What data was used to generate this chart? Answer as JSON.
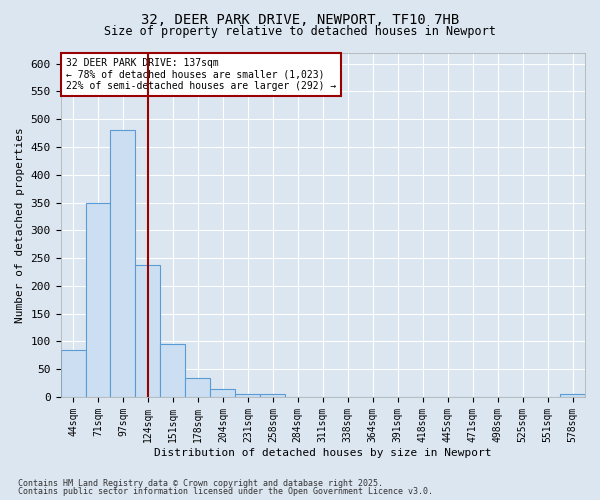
{
  "title1": "32, DEER PARK DRIVE, NEWPORT, TF10 7HB",
  "title2": "Size of property relative to detached houses in Newport",
  "xlabel": "Distribution of detached houses by size in Newport",
  "ylabel": "Number of detached properties",
  "categories": [
    "44sqm",
    "71sqm",
    "97sqm",
    "124sqm",
    "151sqm",
    "178sqm",
    "204sqm",
    "231sqm",
    "258sqm",
    "284sqm",
    "311sqm",
    "338sqm",
    "364sqm",
    "391sqm",
    "418sqm",
    "445sqm",
    "471sqm",
    "498sqm",
    "525sqm",
    "551sqm",
    "578sqm"
  ],
  "values": [
    85,
    350,
    480,
    237,
    95,
    35,
    15,
    6,
    6,
    0,
    0,
    0,
    0,
    0,
    0,
    0,
    0,
    0,
    0,
    0,
    5
  ],
  "bar_color": "#ccdff2",
  "bar_edge_color": "#5b9bd5",
  "vline_x": 3.0,
  "vline_color": "#990000",
  "annotation_line1": "32 DEER PARK DRIVE: 137sqm",
  "annotation_line2": "← 78% of detached houses are smaller (1,023)",
  "annotation_line3": "22% of semi-detached houses are larger (292) →",
  "annotation_box_color": "#ffffff",
  "annotation_box_edge": "#990000",
  "bg_color": "#dce6f1",
  "plot_bg_color": "#dce6f1",
  "grid_color": "#ffffff",
  "footer1": "Contains HM Land Registry data © Crown copyright and database right 2025.",
  "footer2": "Contains public sector information licensed under the Open Government Licence v3.0.",
  "ylim": [
    0,
    620
  ],
  "yticks": [
    0,
    50,
    100,
    150,
    200,
    250,
    300,
    350,
    400,
    450,
    500,
    550,
    600
  ]
}
